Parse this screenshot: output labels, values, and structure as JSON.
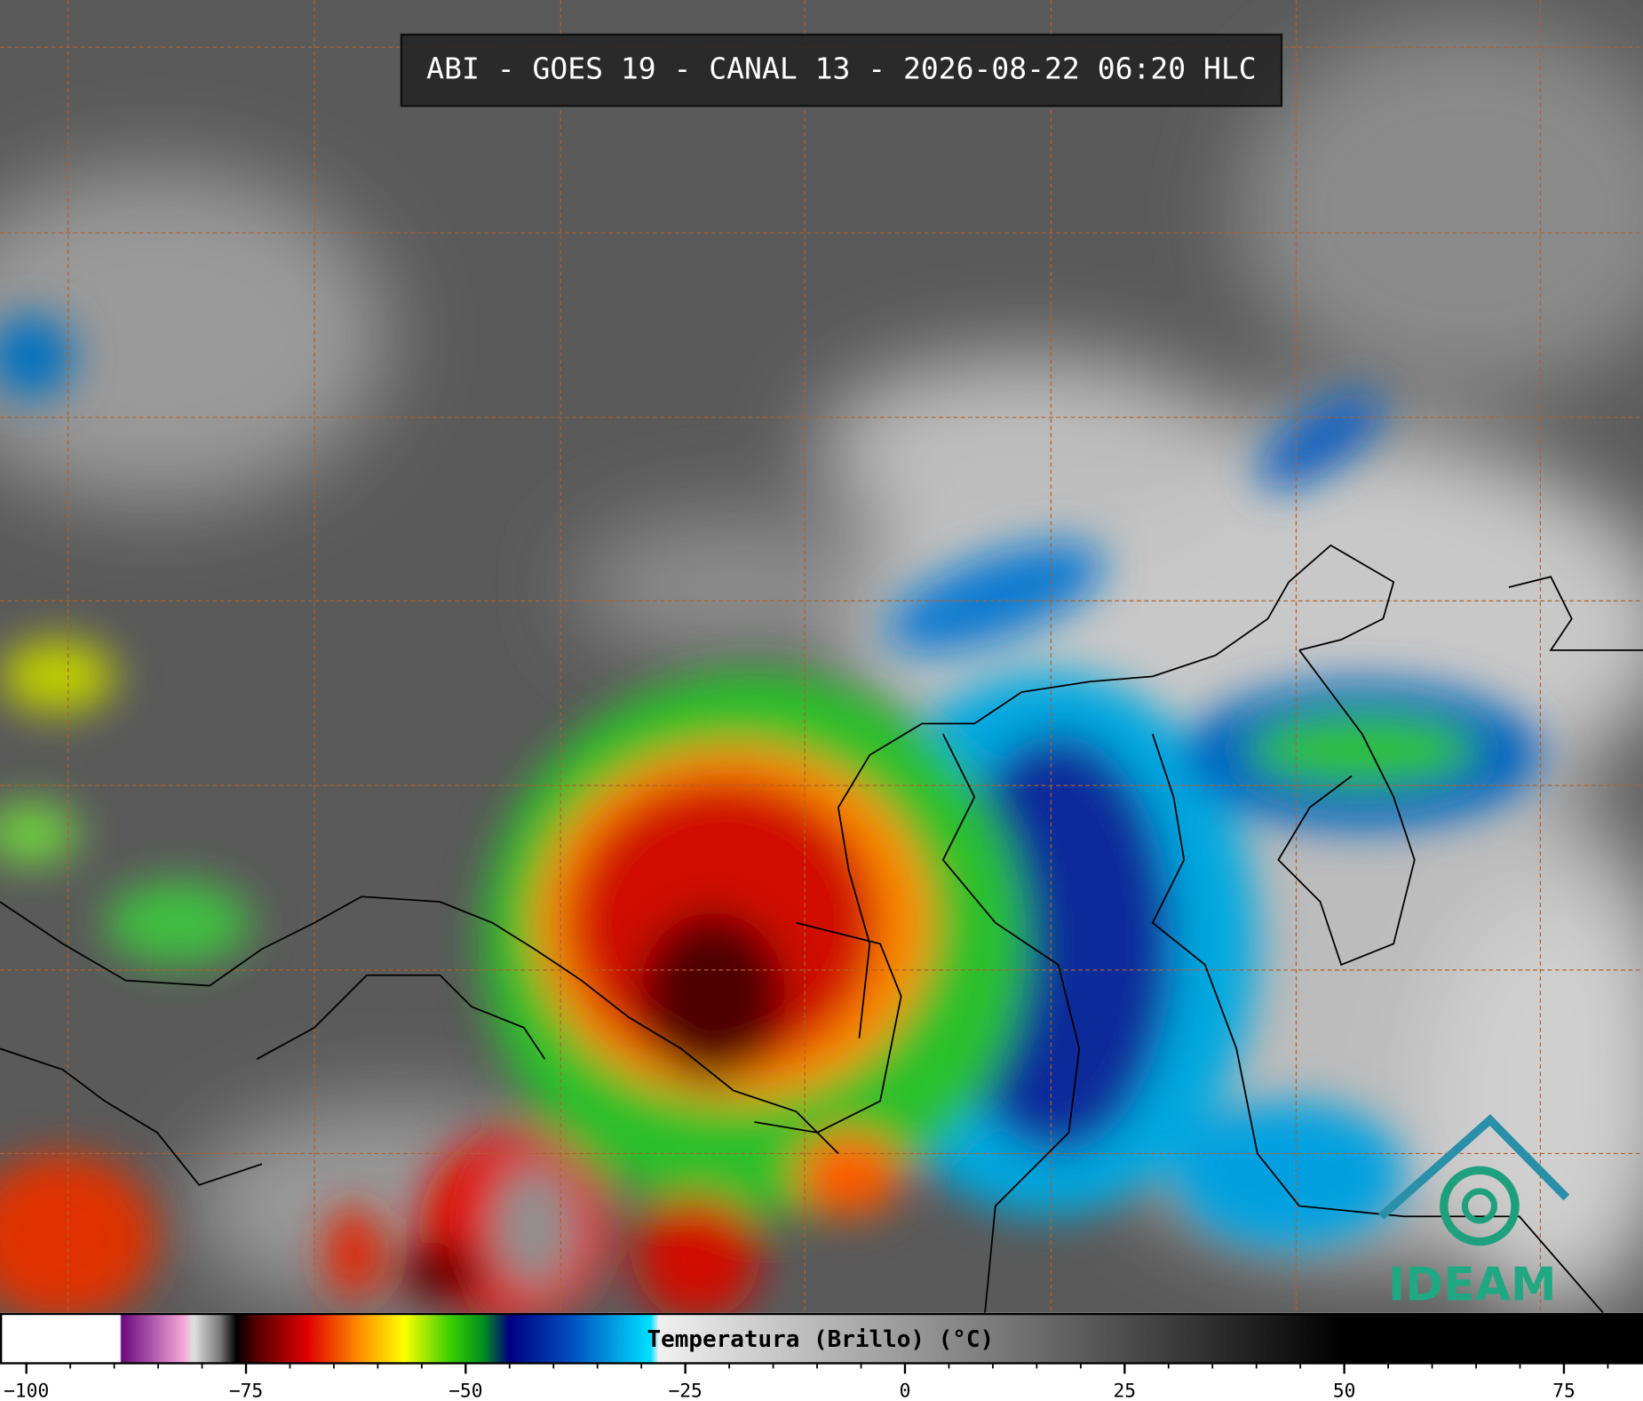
{
  "title": "ABI - GOES 19 - CANAL 13 - 2026-08-22 06:20 HLC",
  "colorbar": {
    "label": "Temperatura (Brillo) (°C)",
    "range": [
      -103,
      84
    ],
    "ticks": [
      {
        "value": -100,
        "label": "−100"
      },
      {
        "value": -75,
        "label": "−75"
      },
      {
        "value": -50,
        "label": "−50"
      },
      {
        "value": -25,
        "label": "−25"
      },
      0,
      25,
      50,
      75
    ]
  },
  "logo": "IDEAM"
}
